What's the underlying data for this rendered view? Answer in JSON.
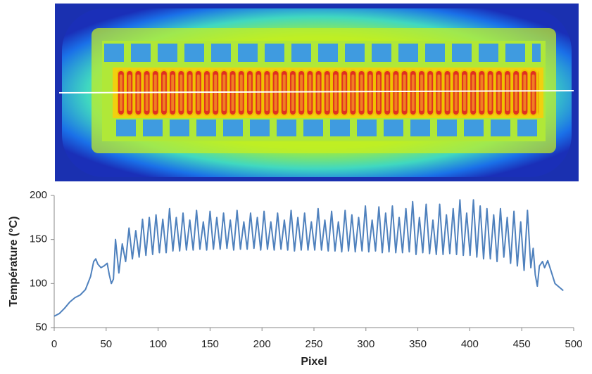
{
  "chart_data": {
    "type": "line",
    "ylabel": "Température (°C)",
    "xlabel": "Pixel",
    "xlim": [
      0,
      500
    ],
    "xticks": [
      0,
      50,
      100,
      150,
      200,
      250,
      300,
      350,
      400,
      450,
      500
    ],
    "ylim": [
      50,
      200
    ],
    "yticks": [
      50,
      100,
      150,
      200
    ],
    "grid": false,
    "color": "#4f81bd",
    "x": [
      0,
      5,
      10,
      15,
      20,
      25,
      30,
      35,
      38,
      40,
      42,
      45,
      48,
      51,
      53,
      55,
      57,
      59,
      62.25,
      65.5,
      68.75,
      72,
      75.25,
      78.5,
      81.75,
      85,
      88.25,
      91.5,
      94.75,
      98,
      101.25,
      104.5,
      107.75,
      111,
      114.25,
      117.5,
      120.75,
      124,
      127.25,
      130.5,
      133.75,
      137,
      140.25,
      143.5,
      146.75,
      150,
      153.25,
      156.5,
      159.75,
      163,
      166.25,
      169.5,
      172.75,
      176,
      179.25,
      182.5,
      185.75,
      189,
      192.25,
      195.5,
      198.75,
      202,
      205.25,
      208.5,
      211.75,
      215,
      218.25,
      221.5,
      224.75,
      228,
      231.25,
      234.5,
      237.75,
      241,
      244.25,
      247.5,
      250.75,
      254,
      257.25,
      260.5,
      263.75,
      267,
      270.25,
      273.5,
      276.75,
      280,
      283.25,
      286.5,
      289.75,
      293,
      296.25,
      299.5,
      302.75,
      306,
      309.25,
      312.5,
      315.75,
      319,
      322.25,
      325.5,
      328.75,
      332,
      335.25,
      338.5,
      341.75,
      345,
      348.25,
      351.5,
      354.75,
      358,
      361.25,
      364.5,
      367.75,
      371,
      374.25,
      377.5,
      380.75,
      384,
      387.25,
      390.5,
      393.75,
      397,
      400.25,
      403.5,
      406.75,
      410,
      413.25,
      416.5,
      419.75,
      423,
      426.25,
      429.5,
      432.75,
      436,
      439.25,
      442.5,
      445.75,
      449,
      452.25,
      455.5,
      458.75,
      461,
      463,
      465,
      467,
      470,
      472,
      475,
      478,
      482,
      486,
      490
    ],
    "values": [
      63,
      66,
      72,
      79,
      84,
      87,
      93,
      108,
      125,
      128,
      122,
      118,
      120,
      123,
      110,
      100,
      105,
      150,
      112,
      145,
      125,
      163,
      128,
      160,
      130,
      173,
      132,
      175,
      133,
      178,
      135,
      173,
      135,
      185,
      137,
      175,
      137,
      180,
      138,
      172,
      138,
      183,
      139,
      170,
      138,
      182,
      139,
      175,
      139,
      180,
      140,
      172,
      138,
      183,
      139,
      170,
      139,
      180,
      140,
      175,
      138,
      182,
      139,
      170,
      138,
      180,
      139,
      172,
      138,
      183,
      137,
      175,
      138,
      180,
      138,
      170,
      138,
      185,
      138,
      172,
      137,
      182,
      137,
      170,
      136,
      183,
      137,
      178,
      136,
      175,
      137,
      188,
      136,
      172,
      137,
      187,
      135,
      180,
      136,
      188,
      135,
      175,
      135,
      185,
      136,
      193,
      133,
      175,
      135,
      190,
      134,
      172,
      133,
      190,
      133,
      178,
      134,
      185,
      133,
      195,
      132,
      180,
      132,
      195,
      130,
      188,
      128,
      185,
      128,
      178,
      125,
      185,
      130,
      175,
      123,
      182,
      120,
      170,
      115,
      183,
      118,
      140,
      110,
      97,
      120,
      125,
      118,
      126,
      115,
      100,
      96,
      92
    ]
  }
}
